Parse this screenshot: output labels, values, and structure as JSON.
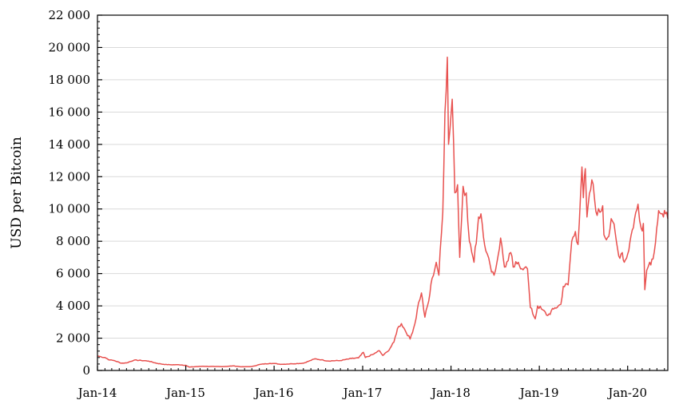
{
  "chart_data": {
    "type": "line",
    "title": "",
    "xlabel": "",
    "ylabel": "USD per Bitcoin",
    "x_tick_labels": [
      "Jan-14",
      "Jan-15",
      "Jan-16",
      "Jan-17",
      "Jan-18",
      "Jan-19",
      "Jan-20"
    ],
    "x_ticks": [
      "2014-01-01",
      "2015-01-01",
      "2016-01-01",
      "2017-01-01",
      "2018-01-01",
      "2019-01-01",
      "2020-01-01"
    ],
    "xlim": [
      "2014-01-01",
      "2020-06-15"
    ],
    "y_tick_labels": [
      "0",
      "2 000",
      "4 000",
      "6 000",
      "8 000",
      "10 000",
      "12 000",
      "14 000",
      "16 000",
      "18 000",
      "20 000",
      "22 000"
    ],
    "y_ticks": [
      0,
      2000,
      4000,
      6000,
      8000,
      10000,
      12000,
      14000,
      16000,
      18000,
      20000,
      22000
    ],
    "ylim": [
      0,
      22000
    ],
    "grid": "horizontal",
    "legend": "none",
    "series": [
      {
        "color": "#e8514f",
        "points": [
          [
            "2014-01-01",
            900
          ],
          [
            "2014-01-15",
            850
          ],
          [
            "2014-02-01",
            800
          ],
          [
            "2014-02-20",
            650
          ],
          [
            "2014-03-10",
            620
          ],
          [
            "2014-04-10",
            450
          ],
          [
            "2014-05-01",
            470
          ],
          [
            "2014-06-01",
            640
          ],
          [
            "2014-07-01",
            620
          ],
          [
            "2014-08-01",
            580
          ],
          [
            "2014-09-01",
            450
          ],
          [
            "2014-10-01",
            380
          ],
          [
            "2014-11-01",
            350
          ],
          [
            "2014-12-01",
            360
          ],
          [
            "2015-01-01",
            320
          ],
          [
            "2015-01-15",
            210
          ],
          [
            "2015-02-15",
            240
          ],
          [
            "2015-03-15",
            260
          ],
          [
            "2015-05-01",
            240
          ],
          [
            "2015-06-15",
            245
          ],
          [
            "2015-07-15",
            285
          ],
          [
            "2015-08-20",
            225
          ],
          [
            "2015-10-01",
            240
          ],
          [
            "2015-11-05",
            380
          ],
          [
            "2015-12-15",
            440
          ],
          [
            "2016-01-01",
            430
          ],
          [
            "2016-02-01",
            380
          ],
          [
            "2016-03-15",
            415
          ],
          [
            "2016-05-01",
            450
          ],
          [
            "2016-06-18",
            720
          ],
          [
            "2016-07-15",
            660
          ],
          [
            "2016-08-10",
            590
          ],
          [
            "2016-10-01",
            615
          ],
          [
            "2016-11-15",
            740
          ],
          [
            "2016-12-15",
            780
          ],
          [
            "2017-01-04",
            1120
          ],
          [
            "2017-01-12",
            800
          ],
          [
            "2017-02-15",
            1010
          ],
          [
            "2017-03-10",
            1230
          ],
          [
            "2017-03-25",
            930
          ],
          [
            "2017-04-15",
            1180
          ],
          [
            "2017-05-10",
            1750
          ],
          [
            "2017-05-25",
            2600
          ],
          [
            "2017-06-10",
            2900
          ],
          [
            "2017-06-25",
            2500
          ],
          [
            "2017-07-16",
            1950
          ],
          [
            "2017-08-05",
            2900
          ],
          [
            "2017-08-20",
            4200
          ],
          [
            "2017-09-01",
            4800
          ],
          [
            "2017-09-15",
            3300
          ],
          [
            "2017-10-01",
            4300
          ],
          [
            "2017-10-15",
            5700
          ],
          [
            "2017-11-01",
            6700
          ],
          [
            "2017-11-12",
            5900
          ],
          [
            "2017-11-28",
            9800
          ],
          [
            "2017-12-07",
            16000
          ],
          [
            "2017-12-17",
            19400
          ],
          [
            "2017-12-22",
            14000
          ],
          [
            "2017-12-28",
            15000
          ],
          [
            "2018-01-06",
            16800
          ],
          [
            "2018-01-12",
            14000
          ],
          [
            "2018-01-17",
            11000
          ],
          [
            "2018-01-28",
            11500
          ],
          [
            "2018-02-06",
            7000
          ],
          [
            "2018-02-20",
            11400
          ],
          [
            "2018-03-05",
            11000
          ],
          [
            "2018-03-18",
            8000
          ],
          [
            "2018-04-06",
            6700
          ],
          [
            "2018-04-25",
            9500
          ],
          [
            "2018-05-05",
            9700
          ],
          [
            "2018-05-25",
            7400
          ],
          [
            "2018-06-12",
            6500
          ],
          [
            "2018-06-28",
            5900
          ],
          [
            "2018-07-10",
            6700
          ],
          [
            "2018-07-25",
            8200
          ],
          [
            "2018-08-10",
            6400
          ],
          [
            "2018-08-25",
            6800
          ],
          [
            "2018-09-05",
            7300
          ],
          [
            "2018-09-15",
            6400
          ],
          [
            "2018-10-01",
            6600
          ],
          [
            "2018-10-31",
            6350
          ],
          [
            "2018-11-13",
            6300
          ],
          [
            "2018-11-25",
            3900
          ],
          [
            "2018-12-15",
            3200
          ],
          [
            "2018-12-25",
            4000
          ],
          [
            "2019-01-10",
            3800
          ],
          [
            "2019-02-05",
            3400
          ],
          [
            "2019-03-01",
            3800
          ],
          [
            "2019-03-31",
            4100
          ],
          [
            "2019-04-10",
            5200
          ],
          [
            "2019-04-30",
            5300
          ],
          [
            "2019-05-15",
            8000
          ],
          [
            "2019-05-30",
            8600
          ],
          [
            "2019-06-10",
            7800
          ],
          [
            "2019-06-26",
            12600
          ],
          [
            "2019-07-02",
            10700
          ],
          [
            "2019-07-10",
            12500
          ],
          [
            "2019-07-17",
            9500
          ],
          [
            "2019-08-06",
            11800
          ],
          [
            "2019-08-28",
            9600
          ],
          [
            "2019-09-20",
            10200
          ],
          [
            "2019-09-25",
            8400
          ],
          [
            "2019-10-15",
            8300
          ],
          [
            "2019-10-25",
            9400
          ],
          [
            "2019-11-01",
            9200
          ],
          [
            "2019-11-25",
            7100
          ],
          [
            "2019-12-10",
            7300
          ],
          [
            "2019-12-18",
            6700
          ],
          [
            "2020-01-01",
            7200
          ],
          [
            "2020-01-20",
            8700
          ],
          [
            "2020-02-13",
            10300
          ],
          [
            "2020-02-26",
            8800
          ],
          [
            "2020-03-06",
            9100
          ],
          [
            "2020-03-12",
            5000
          ],
          [
            "2020-03-20",
            6200
          ],
          [
            "2020-04-01",
            6700
          ],
          [
            "2020-04-15",
            6900
          ],
          [
            "2020-04-30",
            8800
          ],
          [
            "2020-05-08",
            9900
          ],
          [
            "2020-05-18",
            9700
          ],
          [
            "2020-05-28",
            9500
          ],
          [
            "2020-06-05",
            9700
          ],
          [
            "2020-06-15",
            9400
          ]
        ]
      }
    ]
  }
}
